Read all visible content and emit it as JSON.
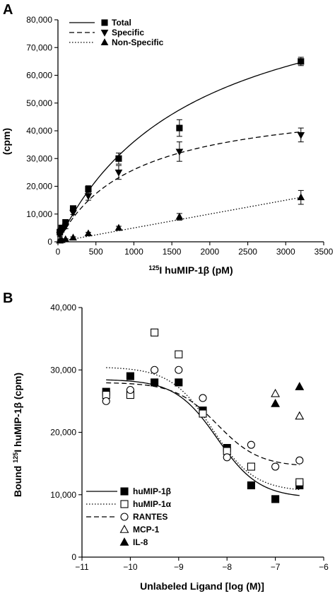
{
  "figure": {
    "panel_a_label": "A",
    "panel_b_label": "B"
  },
  "chart_data": [
    {
      "panel": "A",
      "type": "scatter",
      "xlabel_sup": "125",
      "xlabel": "I huMIP-1β (pM)",
      "ylabel": "(cpm)",
      "xlim": [
        0,
        3500
      ],
      "ylim": [
        0,
        80000
      ],
      "x_ticks": [
        0,
        500,
        1000,
        1500,
        2000,
        2500,
        3000,
        3500
      ],
      "y_ticks": [
        0,
        10000,
        20000,
        30000,
        40000,
        50000,
        60000,
        70000,
        80000
      ],
      "x_tick_labels": [
        "0",
        "500",
        "1000",
        "1500",
        "2000",
        "2500",
        "3000",
        "3500"
      ],
      "y_tick_labels": [
        "0",
        "10,000",
        "20,000",
        "30,000",
        "40,000",
        "50,000",
        "60,000",
        "70,000",
        "80,000"
      ],
      "series": [
        {
          "name": "Total",
          "marker": "square-filled",
          "line": "solid",
          "x": [
            25,
            50,
            100,
            200,
            400,
            800,
            1600,
            3200
          ],
          "y": [
            3500,
            5000,
            7000,
            12000,
            19000,
            30000,
            41000,
            65000
          ],
          "err": [
            500,
            500,
            800,
            700,
            1200,
            2000,
            3000,
            1500
          ],
          "fit": {
            "model": "saturation",
            "bmax": 101000,
            "kd": 1800
          }
        },
        {
          "name": "Specific",
          "marker": "triangle-down-filled",
          "line": "dashed",
          "x": [
            25,
            50,
            100,
            200,
            400,
            800,
            1600,
            3200
          ],
          "y": [
            2500,
            4000,
            5500,
            10500,
            16500,
            25000,
            32500,
            38500
          ],
          "err": [
            500,
            500,
            800,
            700,
            1500,
            2500,
            3500,
            2500
          ],
          "fit": {
            "model": "saturation",
            "bmax": 52000,
            "kd": 1000
          }
        },
        {
          "name": "Non-Specific",
          "marker": "triangle-up-filled",
          "line": "dotted",
          "x": [
            25,
            50,
            100,
            200,
            400,
            800,
            1600,
            3200
          ],
          "y": [
            400,
            600,
            900,
            1500,
            3000,
            5000,
            9000,
            16000
          ],
          "err": [
            200,
            200,
            200,
            300,
            400,
            600,
            1200,
            2500
          ],
          "fit": {
            "model": "linear",
            "slope": 5.0,
            "intercept": 0
          }
        }
      ],
      "legend_position": "top-left"
    },
    {
      "panel": "B",
      "type": "scatter",
      "ylabel_pre": "Bound ",
      "ylabel_sup": "125",
      "ylabel": "I huMIP-1β (cpm)",
      "xlabel": "Unlabeled Ligand [log (M)]",
      "xlim": [
        -11,
        -6
      ],
      "ylim": [
        0,
        40000
      ],
      "x_ticks": [
        -11,
        -10,
        -9,
        -8,
        -7,
        -6
      ],
      "y_ticks": [
        0,
        10000,
        20000,
        30000,
        40000
      ],
      "x_tick_labels": [
        "−11",
        "−10",
        "−9",
        "−8",
        "−7",
        "−6"
      ],
      "y_tick_labels": [
        "0",
        "10,000",
        "20,000",
        "30,000",
        "40,000"
      ],
      "series": [
        {
          "name": "huMIP-1β",
          "marker": "square-filled",
          "line": "solid",
          "x": [
            -10.5,
            -10,
            -9.5,
            -9,
            -8.5,
            -8,
            -7.5,
            -7,
            -6.5
          ],
          "y": [
            26500,
            29000,
            28000,
            28000,
            23500,
            17500,
            11500,
            9300,
            11500
          ],
          "fit": {
            "top": 28500,
            "bottom": 9500,
            "logEC50": -8.2
          }
        },
        {
          "name": "huMIP-1α",
          "marker": "square-open",
          "line": "dotted",
          "x": [
            -10.5,
            -10,
            -9.5,
            -9,
            -8.5,
            -8,
            -7.5,
            -6.5
          ],
          "y": [
            26000,
            26000,
            36000,
            32500,
            23000,
            17000,
            14500,
            12000
          ],
          "fit": {
            "top": 30500,
            "bottom": 10500,
            "logEC50": -8.3
          }
        },
        {
          "name": "RANTES",
          "marker": "circle-open",
          "line": "dashed",
          "x": [
            -10.5,
            -10,
            -9.5,
            -9,
            -8.5,
            -8,
            -7.5,
            -7,
            -6.5
          ],
          "y": [
            25000,
            26800,
            30000,
            30000,
            25500,
            16000,
            18000,
            14500,
            15500
          ],
          "fit": {
            "top": 28000,
            "bottom": 14500,
            "logEC50": -8.2
          }
        },
        {
          "name": "MCP-1",
          "marker": "triangle-up-open",
          "line": "none",
          "x": [
            -7,
            -6.5
          ],
          "y": [
            26200,
            22600
          ]
        },
        {
          "name": "IL-8",
          "marker": "triangle-up-filled",
          "line": "none",
          "x": [
            -7,
            -6.5
          ],
          "y": [
            24600,
            27300
          ]
        }
      ],
      "legend_position": "bottom-left"
    }
  ]
}
